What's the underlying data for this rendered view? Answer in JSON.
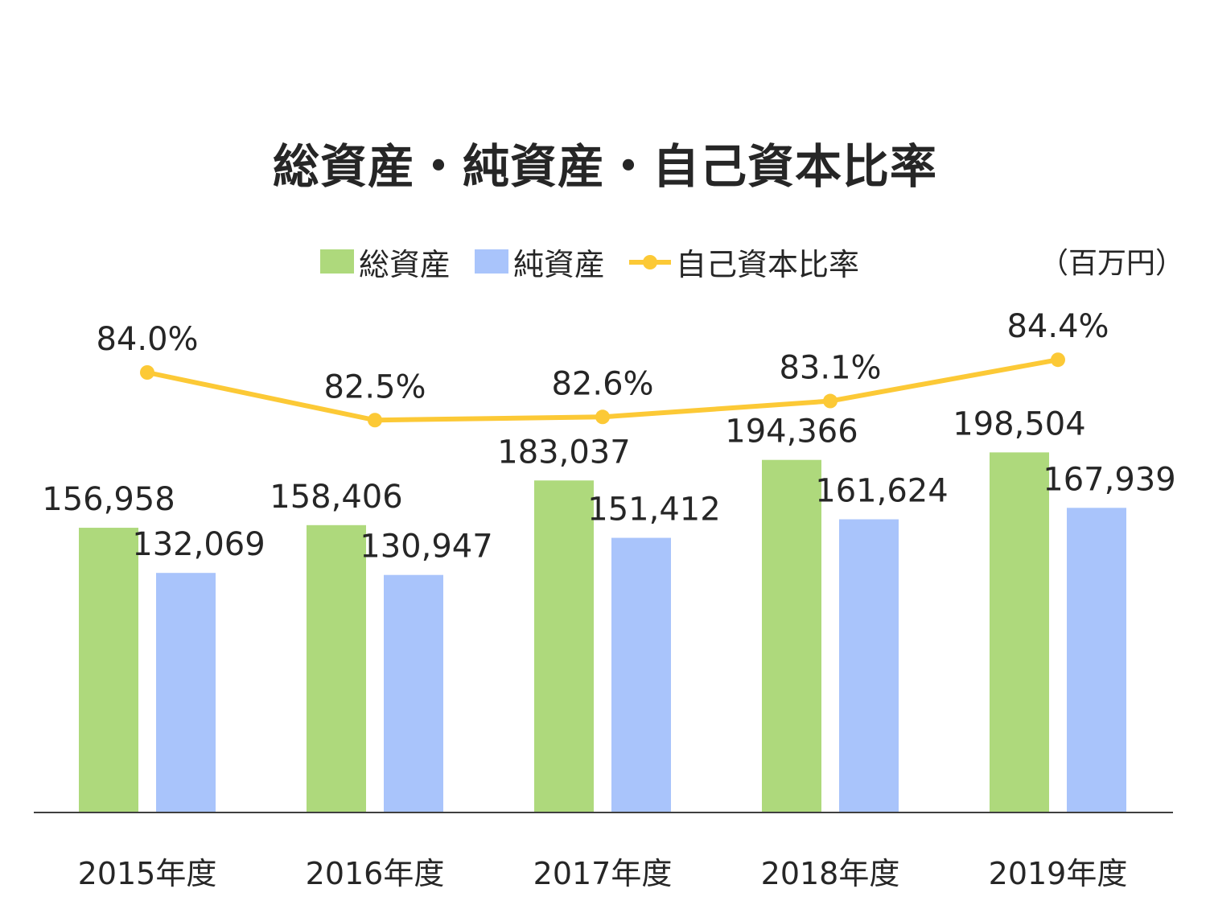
{
  "chart_data": {
    "type": "bar",
    "title": "総資産・純資産・自己資本比率",
    "unit": "（百万円）",
    "categories": [
      "2015年度",
      "2016年度",
      "2017年度",
      "2018年度",
      "2019年度"
    ],
    "series": [
      {
        "name": "総資産",
        "type": "bar",
        "color": "#aed97c",
        "values": [
          156958,
          158406,
          183037,
          194366,
          198504
        ],
        "labels": [
          "156,958",
          "158,406",
          "183,037",
          "194,366",
          "198,504"
        ]
      },
      {
        "name": "純資産",
        "type": "bar",
        "color": "#a9c4fb",
        "values": [
          132069,
          130947,
          151412,
          161624,
          167939
        ],
        "labels": [
          "132,069",
          "130,947",
          "151,412",
          "161,624",
          "167,939"
        ]
      },
      {
        "name": "自己資本比率",
        "type": "line",
        "color": "#fcc936",
        "values": [
          84.0,
          82.5,
          82.6,
          83.1,
          84.4
        ],
        "labels": [
          "84.0%",
          "82.5%",
          "82.6%",
          "83.1%",
          "84.4%"
        ]
      }
    ],
    "ylim": [
      0,
      250000
    ],
    "grid": false,
    "legend": "top"
  }
}
